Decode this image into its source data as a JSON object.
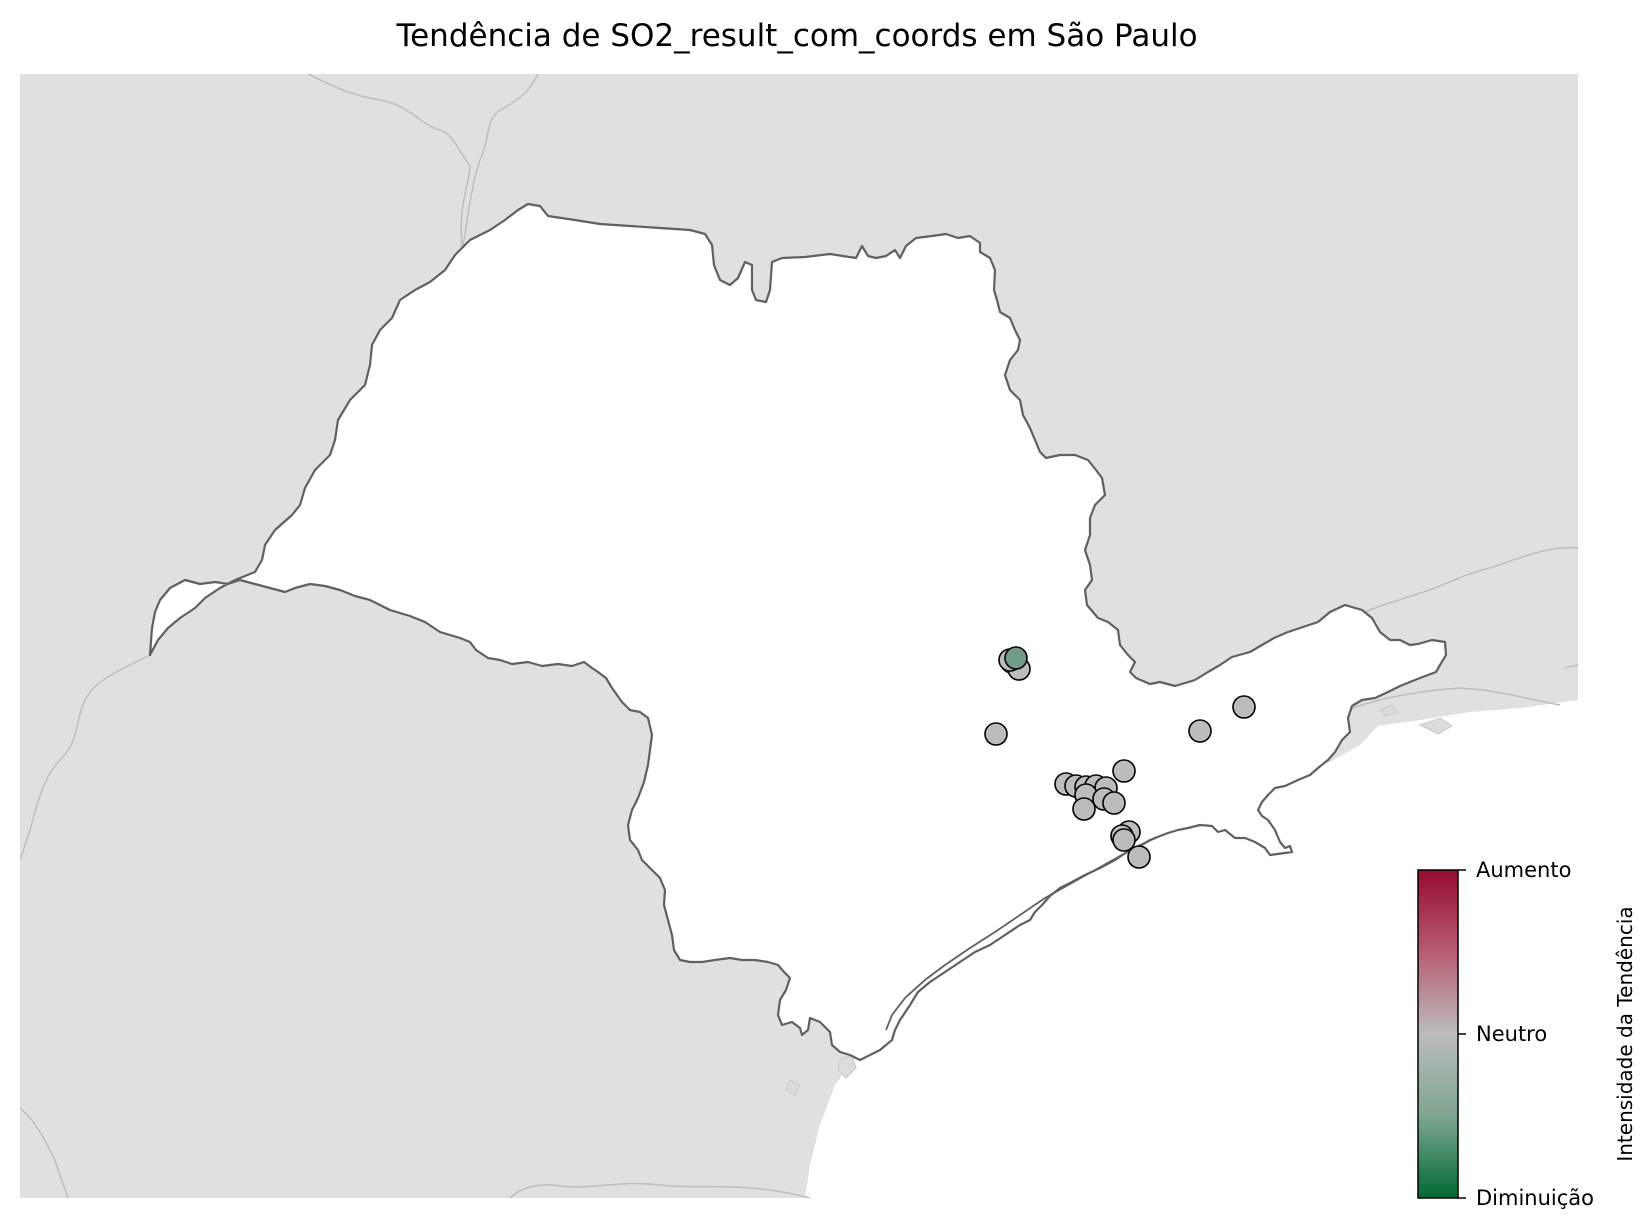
{
  "map": {
    "title": "Tendência de SO2_result_com_coords em São Paulo",
    "region": "São Paulo",
    "colors": {
      "background": "#e0e0e0",
      "state_fill": "#ffffff",
      "state_border": "#606060",
      "neighbor_border": "#bdbdbd",
      "marker_edge": "#000000"
    }
  },
  "colorbar": {
    "label": "Intensidade da Tendência",
    "ticks": [
      "Aumento",
      "Neutro",
      "Diminuição"
    ],
    "colors": {
      "top": "#960b2d",
      "middle": "#bcbcbc",
      "bottom": "#006a36"
    }
  },
  "stations": [
    {
      "trend": -0.4
    },
    {
      "trend": 0
    },
    {
      "trend": 0
    },
    {
      "trend": 0
    },
    {
      "trend": 0
    },
    {
      "trend": 0
    },
    {
      "trend": 0
    },
    {
      "trend": 0
    },
    {
      "trend": 0
    },
    {
      "trend": 0
    },
    {
      "trend": 0
    },
    {
      "trend": 0
    },
    {
      "trend": 0
    },
    {
      "trend": 0
    },
    {
      "trend": 0
    },
    {
      "trend": 0
    },
    {
      "trend": 0
    },
    {
      "trend": 0
    },
    {
      "trend": 0
    },
    {
      "trend": 0
    },
    {
      "trend": 0
    }
  ]
}
